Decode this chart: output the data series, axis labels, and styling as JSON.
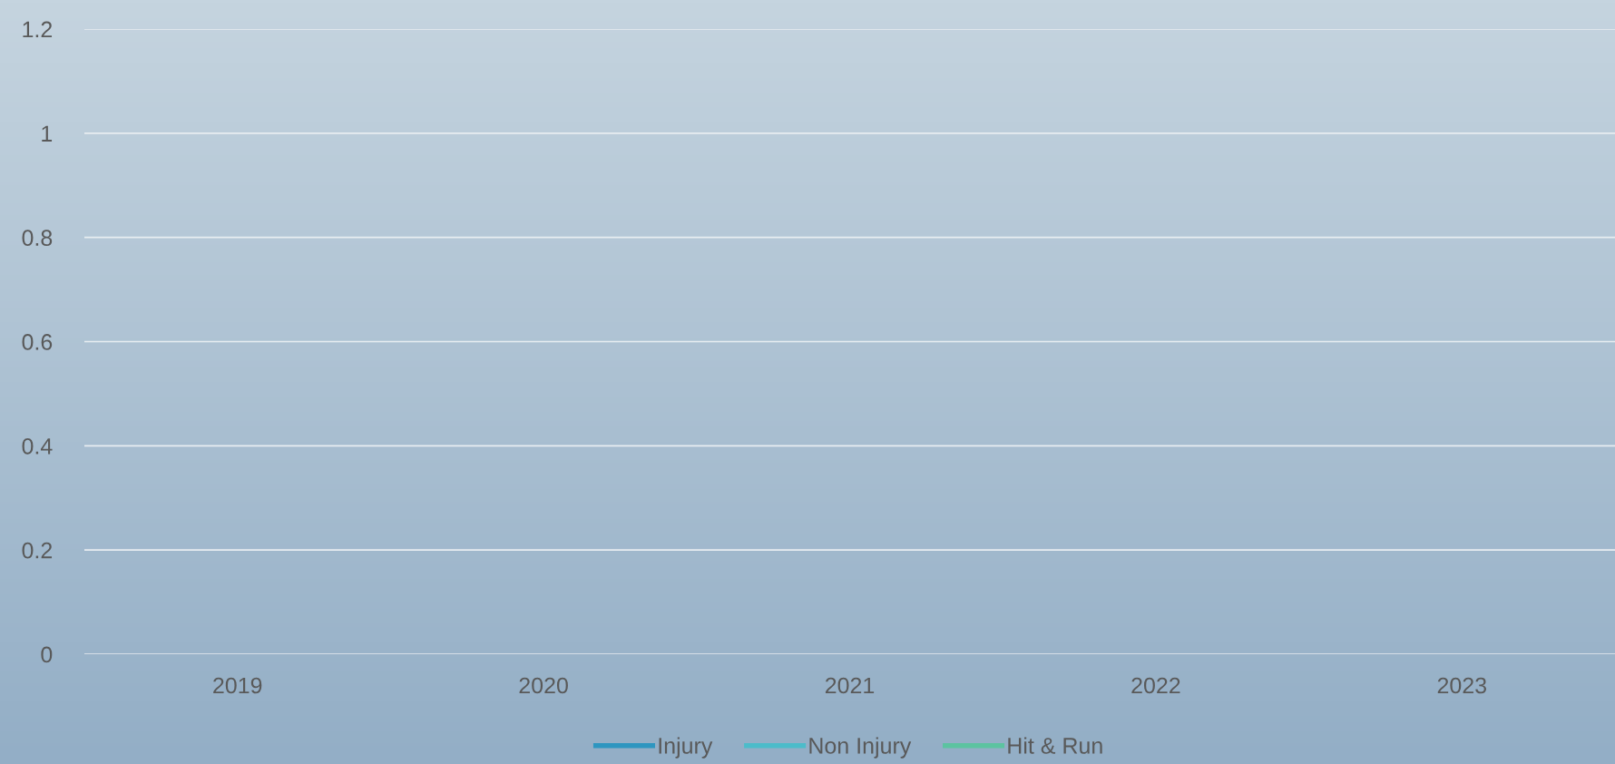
{
  "chart_data": {
    "type": "line",
    "categories": [
      "2019",
      "2020",
      "2021",
      "2022",
      "2023"
    ],
    "series": [
      {
        "name": "Injury",
        "color": "#2e96c0",
        "values": [
          null,
          null,
          null,
          null,
          null
        ]
      },
      {
        "name": "Non Injury",
        "color": "#4cbcca",
        "values": [
          null,
          null,
          null,
          null,
          null
        ]
      },
      {
        "name": "Hit & Run",
        "color": "#5cc3a0",
        "values": [
          null,
          null,
          null,
          null,
          null
        ]
      }
    ],
    "ylim": [
      0,
      1.2
    ],
    "yticks": [
      0,
      0.2,
      0.4,
      0.6,
      0.8,
      1,
      1.2
    ],
    "grid": "y",
    "legend": "bottom",
    "marker": "none",
    "line_style": "solid"
  }
}
